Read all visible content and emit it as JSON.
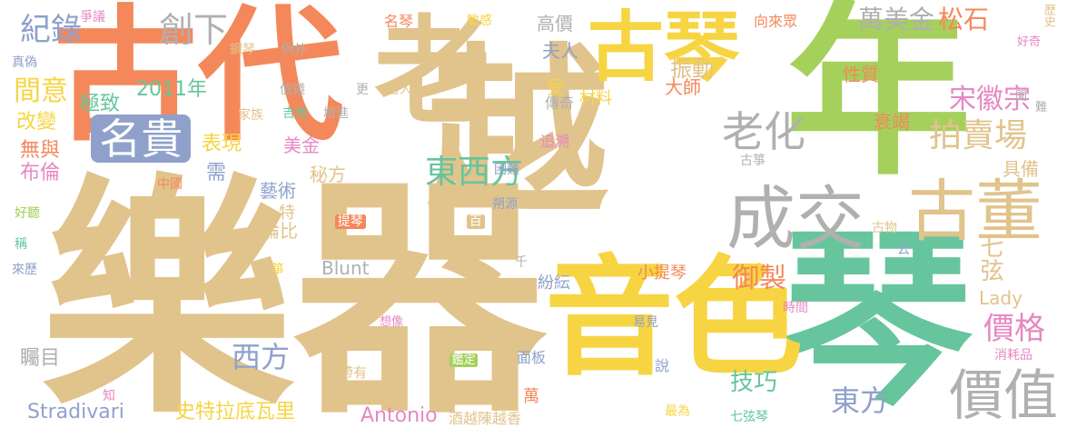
{
  "palette": {
    "tan": "#E1C38C",
    "orange": "#F4885A",
    "lime": "#A5D05C",
    "yellow": "#F7D442",
    "green": "#66C59D",
    "gray": "#B0B0B0",
    "blue": "#8FA1CB",
    "pink": "#E788C3",
    "white": "#FFFFFF"
  },
  "words": {
    "yue_qi": "樂器",
    "gu_dai": "古代",
    "lao": "老",
    "yue": "越",
    "nian": "年",
    "qin": "琴",
    "gu_qin": "古琴",
    "yin_se": "音色",
    "cheng_jiao": "成交",
    "gu_dong": "古董",
    "ming_gui": "名貴",
    "lao_hua": "老化",
    "pai_mai_chang": "拍賣場",
    "dong_xi_fang": "東西方",
    "jia_zhi": "價值",
    "jia_ge": "價格",
    "song_hui_zong": "宋徽宗",
    "wan_mei_jin": "萬美金",
    "song_shi": "松石",
    "ji_lu": "紀錄",
    "chuang_xia": "創下",
    "xi_fang": "西方",
    "dong_fang": "東方",
    "yu_zhi": "御製",
    "qi_xian": "七弦",
    "ji_qiao": "技巧",
    "shi_te": "史特拉底瓦里",
    "stradivari": "Stradivari",
    "antonio": "Antonio",
    "lady": "Lady",
    "blunt": "Blunt",
    "jiu_yue": "酒越陳越香",
    "year_2011": "2011年",
    "ji_zhi": "極致",
    "jian_yi": "間意",
    "gai_bian": "改變",
    "wu_yu": "無與",
    "bu_lun": "布倫",
    "biao_xian": "表現",
    "xu": "需",
    "mei_jin": "美金",
    "mi_fang": "秘方",
    "yi_shu": "藝術",
    "te": "特",
    "lun_bi": "倫比",
    "zheng_1": "箏",
    "xiao_ti_qin": "小提琴",
    "fen_yun": "紛紜",
    "shuo": "說",
    "wan": "萬",
    "mian_ban": "面板",
    "jian_ding": "鑑定",
    "dai_you": "帶有",
    "xiang_xiang": "想像",
    "ti_qin": "提琴",
    "bai": "百",
    "qian": "千",
    "zhen_dong": "振動",
    "da_shi": "大師",
    "xing_zhi": "性質",
    "shuai_jie": "衰竭",
    "ju_bei": "具備",
    "gao_jia": "高價",
    "fu_ren": "夫人",
    "xiang_lai_zhong": "向來眾",
    "zheng_yi": "爭議",
    "gang_qin": "鋼琴",
    "li_wai": "例外",
    "zhen_wei": "真偽",
    "zhi_qian": "值錢",
    "ji_ta": "吉他",
    "zeng_jin": "增進",
    "jia_zu": "家族",
    "gu_ren": "古人",
    "geng": "更",
    "shou": "受",
    "cai_liao": "材料",
    "chuan_qi": "傳奇",
    "zhui_su": "追溯",
    "kun_nan": "困難",
    "shuo_yuan": "朔源",
    "gu_zheng": "古箏",
    "gu_wu": "古物",
    "yun": "云",
    "yi_jian": "易見",
    "shi_jian": "時間",
    "xiao_hao_pin": "消耗品",
    "zui_wei": "最為",
    "qi_xian_qin": "七弦琴",
    "zhu_mu": "矚目",
    "zhi": "知",
    "hao_ting": "好聽",
    "cheng": "稱",
    "lai_li": "來歷",
    "zhong_guo": "中國",
    "ming_qin": "名琴",
    "min_gan": "敏感",
    "li_shi": "歷史",
    "hao_qi": "好奇",
    "wen": "聞",
    "nan": "難"
  }
}
